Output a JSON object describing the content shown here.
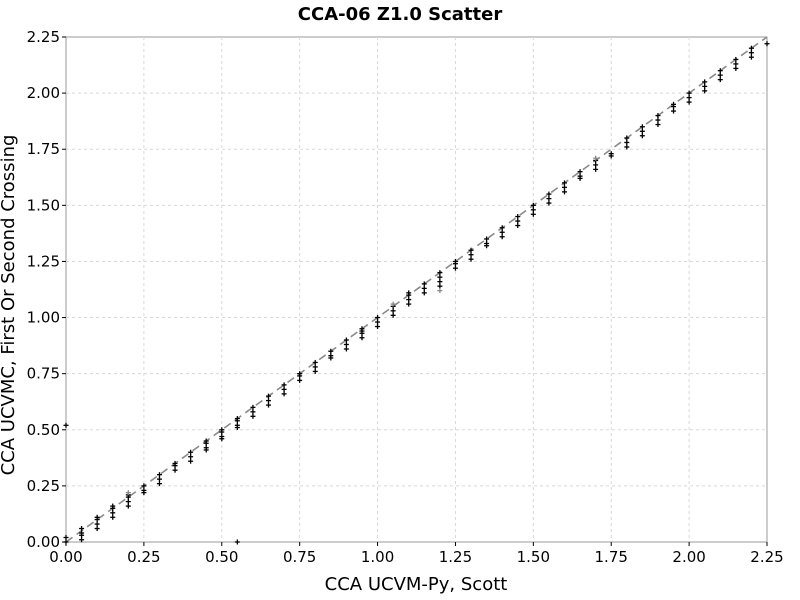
{
  "chart_data": {
    "type": "scatter",
    "title": "CCA-06 Z1.0 Scatter",
    "xlabel": "CCA UCVM-Py, Scott",
    "ylabel": "CCA UCVMC, First Or Second Crossing",
    "xlim": [
      0,
      2.25
    ],
    "ylim": [
      0,
      2.25
    ],
    "xticks": [
      "0.00",
      "0.25",
      "0.50",
      "0.75",
      "1.00",
      "1.25",
      "1.50",
      "1.75",
      "2.00",
      "2.25"
    ],
    "yticks": [
      "0.00",
      "0.25",
      "0.50",
      "0.75",
      "1.00",
      "1.25",
      "1.50",
      "1.75",
      "2.00",
      "2.25"
    ],
    "grid": true,
    "reference_line": {
      "style": "dashed",
      "color": "#8a8a8a",
      "from": [
        0,
        0
      ],
      "to": [
        2.25,
        2.25
      ]
    },
    "columns": [
      {
        "x": 0.0,
        "y": [
          0.0,
          0.02
        ]
      },
      {
        "x": 0.05,
        "y": [
          0.01,
          0.03,
          0.04,
          0.06
        ]
      },
      {
        "x": 0.1,
        "y": [
          0.06,
          0.08,
          0.1,
          0.11
        ]
      },
      {
        "x": 0.15,
        "y": [
          0.11,
          0.13,
          0.15,
          0.16
        ]
      },
      {
        "x": 0.2,
        "y": [
          0.16,
          0.18,
          0.2,
          0.21
        ]
      },
      {
        "x": 0.25,
        "y": [
          0.22,
          0.23,
          0.25
        ]
      },
      {
        "x": 0.3,
        "y": [
          0.26,
          0.28,
          0.3
        ]
      },
      {
        "x": 0.35,
        "y": [
          0.32,
          0.34,
          0.35
        ]
      },
      {
        "x": 0.4,
        "y": [
          0.36,
          0.38,
          0.4
        ]
      },
      {
        "x": 0.45,
        "y": [
          0.41,
          0.42,
          0.44,
          0.45
        ]
      },
      {
        "x": 0.5,
        "y": [
          0.46,
          0.47,
          0.49,
          0.5
        ]
      },
      {
        "x": 0.55,
        "y": [
          0.51,
          0.52,
          0.54,
          0.55
        ]
      },
      {
        "x": 0.6,
        "y": [
          0.56,
          0.58,
          0.6
        ]
      },
      {
        "x": 0.65,
        "y": [
          0.61,
          0.63,
          0.65
        ]
      },
      {
        "x": 0.7,
        "y": [
          0.66,
          0.68,
          0.7
        ]
      },
      {
        "x": 0.75,
        "y": [
          0.72,
          0.74,
          0.75
        ]
      },
      {
        "x": 0.8,
        "y": [
          0.76,
          0.78,
          0.8
        ]
      },
      {
        "x": 0.85,
        "y": [
          0.82,
          0.83,
          0.85
        ]
      },
      {
        "x": 0.9,
        "y": [
          0.86,
          0.88,
          0.9
        ]
      },
      {
        "x": 0.95,
        "y": [
          0.91,
          0.93,
          0.94,
          0.95
        ]
      },
      {
        "x": 1.0,
        "y": [
          0.96,
          0.98,
          1.0
        ]
      },
      {
        "x": 1.05,
        "y": [
          1.01,
          1.03,
          1.05
        ]
      },
      {
        "x": 1.1,
        "y": [
          1.06,
          1.08,
          1.1,
          1.11
        ]
      },
      {
        "x": 1.15,
        "y": [
          1.11,
          1.13,
          1.15
        ]
      },
      {
        "x": 1.2,
        "y": [
          1.14,
          1.16,
          1.18,
          1.2
        ]
      },
      {
        "x": 1.25,
        "y": [
          1.22,
          1.24,
          1.25
        ]
      },
      {
        "x": 1.3,
        "y": [
          1.26,
          1.28,
          1.3
        ]
      },
      {
        "x": 1.35,
        "y": [
          1.32,
          1.33,
          1.35
        ]
      },
      {
        "x": 1.4,
        "y": [
          1.36,
          1.38,
          1.4
        ]
      },
      {
        "x": 1.45,
        "y": [
          1.41,
          1.43,
          1.45
        ]
      },
      {
        "x": 1.5,
        "y": [
          1.46,
          1.48,
          1.5
        ]
      },
      {
        "x": 1.55,
        "y": [
          1.51,
          1.53,
          1.55
        ]
      },
      {
        "x": 1.6,
        "y": [
          1.56,
          1.58,
          1.6
        ]
      },
      {
        "x": 1.65,
        "y": [
          1.62,
          1.63,
          1.65
        ]
      },
      {
        "x": 1.7,
        "y": [
          1.66,
          1.68,
          1.7
        ]
      },
      {
        "x": 1.75,
        "y": [
          1.72,
          1.73
        ]
      },
      {
        "x": 1.8,
        "y": [
          1.76,
          1.78,
          1.8
        ]
      },
      {
        "x": 1.85,
        "y": [
          1.81,
          1.83,
          1.85
        ]
      },
      {
        "x": 1.9,
        "y": [
          1.86,
          1.88,
          1.9
        ]
      },
      {
        "x": 1.95,
        "y": [
          1.92,
          1.94,
          1.95
        ]
      },
      {
        "x": 2.0,
        "y": [
          1.96,
          1.98,
          2.0
        ]
      },
      {
        "x": 2.05,
        "y": [
          2.01,
          2.03,
          2.05
        ]
      },
      {
        "x": 2.1,
        "y": [
          2.06,
          2.08,
          2.1
        ]
      },
      {
        "x": 2.15,
        "y": [
          2.11,
          2.13,
          2.15
        ]
      },
      {
        "x": 2.2,
        "y": [
          2.16,
          2.18,
          2.2
        ]
      },
      {
        "x": 2.25,
        "y": [
          2.22
        ]
      }
    ],
    "outliers": [
      {
        "x": 0.55,
        "y": 0.0
      },
      {
        "x": 0.0,
        "y": 0.52
      }
    ],
    "gray_points": [
      {
        "x": 0.2,
        "y": 0.22
      },
      {
        "x": 1.2,
        "y": 1.12
      },
      {
        "x": 1.05,
        "y": 1.06
      },
      {
        "x": 1.7,
        "y": 1.71
      }
    ]
  }
}
